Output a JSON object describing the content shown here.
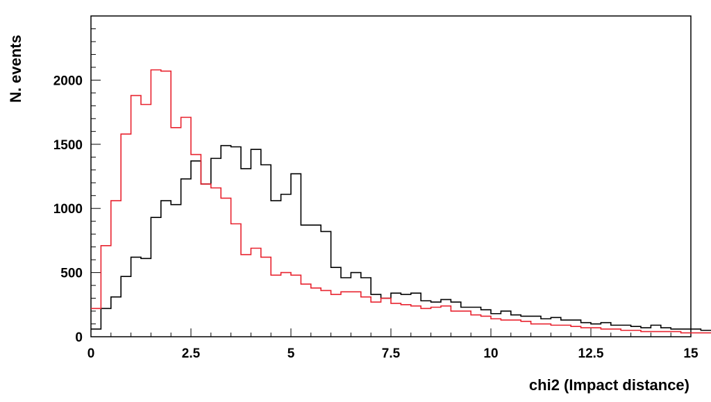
{
  "chart_data": {
    "type": "histogram",
    "xlabel": "chi2 (Impact distance)",
    "ylabel": "N. events",
    "xlim": [
      0,
      15
    ],
    "ylim": [
      0,
      2500
    ],
    "bin_width": 0.25,
    "x_ticks": [
      {
        "value": 0,
        "label": "0"
      },
      {
        "value": 2.5,
        "label": "2.5"
      },
      {
        "value": 5,
        "label": "5"
      },
      {
        "value": 7.5,
        "label": "7.5"
      },
      {
        "value": 10,
        "label": "10"
      },
      {
        "value": 12.5,
        "label": "12.5"
      },
      {
        "value": 15,
        "label": "15"
      }
    ],
    "y_ticks": [
      {
        "value": 0,
        "label": "0"
      },
      {
        "value": 500,
        "label": "500"
      },
      {
        "value": 1000,
        "label": "1000"
      },
      {
        "value": 1500,
        "label": "1500"
      },
      {
        "value": 2000,
        "label": "2000"
      }
    ],
    "grid": false,
    "series": [
      {
        "color": "#000000",
        "values": [
          60,
          220,
          310,
          470,
          620,
          610,
          930,
          1060,
          1030,
          1230,
          1370,
          1190,
          1390,
          1490,
          1480,
          1310,
          1460,
          1340,
          1060,
          1110,
          1270,
          870,
          870,
          820,
          540,
          460,
          500,
          460,
          330,
          300,
          340,
          330,
          340,
          280,
          270,
          290,
          270,
          230,
          230,
          210,
          180,
          200,
          170,
          160,
          160,
          140,
          150,
          130,
          130,
          110,
          100,
          110,
          90,
          90,
          80,
          70,
          90,
          70,
          60,
          60,
          60,
          50,
          50,
          40,
          40,
          40,
          30,
          30,
          20,
          20,
          20,
          20,
          20,
          20,
          20,
          20,
          20,
          20,
          20,
          10,
          10,
          10,
          10,
          10,
          10,
          10,
          10,
          10,
          10,
          10
        ]
      },
      {
        "color": "#e8222e",
        "values": [
          220,
          710,
          1060,
          1580,
          1880,
          1810,
          2080,
          2070,
          1630,
          1710,
          1420,
          1190,
          1160,
          1080,
          880,
          640,
          690,
          620,
          480,
          500,
          480,
          410,
          380,
          360,
          330,
          350,
          350,
          310,
          270,
          300,
          260,
          250,
          240,
          220,
          230,
          240,
          200,
          200,
          170,
          160,
          140,
          130,
          130,
          120,
          100,
          100,
          90,
          90,
          80,
          70,
          70,
          60,
          60,
          50,
          50,
          40,
          40,
          40,
          40,
          30,
          30,
          30,
          30,
          30,
          20,
          20,
          20,
          20,
          20,
          20,
          20,
          20,
          20,
          10,
          10,
          10,
          10,
          10,
          10,
          10,
          10,
          10,
          10,
          10,
          10,
          10,
          10,
          10,
          10,
          10
        ]
      }
    ]
  }
}
